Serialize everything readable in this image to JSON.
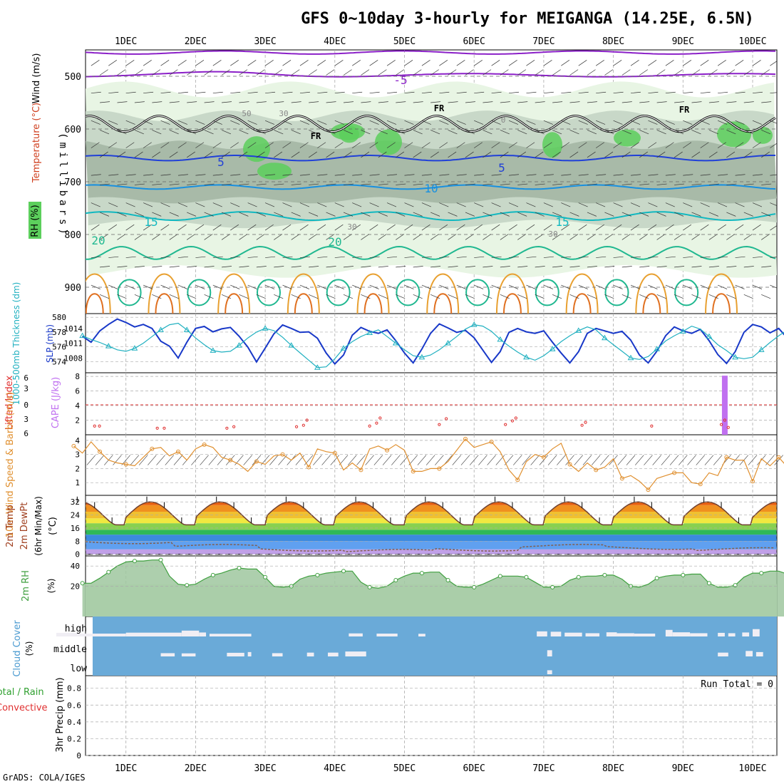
{
  "page": {
    "title": "GFS 0~10day 3-hourly for MEIGANGA (14.25E, 6.5N)",
    "footer": "GrADS: COLA/IGES",
    "run_total": "Run Total = 0"
  },
  "colors": {
    "rh_fill_light": "#e8f5e4",
    "rh_fill_mid": "#c8d8c8",
    "rh_fill_dark": "#a8baa8",
    "rh_fill_green": "#5ccf5c",
    "temp_purple": "#8b20c8",
    "temp_blue": "#2040d8",
    "temp_lightblue": "#1890e0",
    "temp_cyan": "#10b8c0",
    "temp_teal": "#20b890",
    "temp_orange": "#e8a030",
    "temp_darkorange": "#e07020",
    "freezing": "#000000",
    "thickness": "#20b0c0",
    "slp": "#1838c8",
    "cape": "#c070f0",
    "lifted": "#e03030",
    "wind10": "#e09030",
    "rh2m": "#40a040",
    "cloud_blue": "#6aaad8",
    "cloud_white": "#f0eef4",
    "grid": "#aaaaaa"
  },
  "chart_data": [
    {
      "id": "upper",
      "type": "heatmap",
      "x": [
        "1DEC",
        "2DEC",
        "3DEC",
        "4DEC",
        "5DEC",
        "6DEC",
        "7DEC",
        "8DEC",
        "9DEC",
        "10DEC"
      ],
      "ylabel": "(millibars)",
      "side_labels": {
        "wind": "Wind (m/s)",
        "temp": "Temperature (°C)",
        "rh": "RH (%)"
      },
      "yticks": [
        500,
        600,
        700,
        800,
        900
      ],
      "ylim": [
        450,
        950
      ],
      "contour_labels": [
        "-5",
        "FR",
        "FR",
        "FR",
        "5",
        "5",
        "10",
        "15",
        "15",
        "20",
        "20",
        "50",
        "30",
        "0",
        "30",
        "30"
      ]
    },
    {
      "id": "thickness_slp",
      "type": "line",
      "label_left": "1000-500mb Thickness (dm)",
      "label_right": "SLP (mb)",
      "yticks_left": [
        574,
        576,
        578,
        580
      ],
      "yticks_right": [
        1008,
        1011,
        1014
      ],
      "ylim_left": [
        572.5,
        580.5
      ],
      "thickness": [
        577.5,
        577.0,
        576.6,
        576.1,
        575.6,
        575.4,
        575.8,
        576.5,
        577.4,
        578.3,
        579.0,
        579.2,
        578.3,
        577.2,
        576.3,
        575.5,
        575.3,
        575.4,
        576.2,
        577.2,
        578.0,
        578.5,
        578.2,
        577.3,
        576.2,
        575.2,
        574.2,
        573.2,
        573.3,
        574.4,
        575.8,
        576.7,
        577.4,
        577.9,
        578.3,
        577.4,
        576.5,
        575.6,
        574.8,
        574.6,
        574.9,
        575.6,
        576.5,
        577.4,
        578.4,
        579.0,
        578.8,
        578.1,
        577.0,
        576.1,
        575.3,
        574.6,
        574.2,
        574.8,
        575.7,
        576.7,
        577.5,
        578.2,
        578.7,
        578.3,
        577.2,
        576.3,
        575.4,
        574.5,
        574.3,
        574.7,
        575.7,
        576.8,
        577.5,
        578.1,
        578.8,
        578.4,
        577.4,
        576.3,
        575.5,
        574.6,
        574.4,
        574.6,
        575.6,
        576.6,
        577.5,
        578.3,
        578.5,
        578.1,
        577.1,
        576.2,
        575.4,
        574.6,
        574.2,
        574.6,
        575.6,
        576.8,
        578.0,
        579.5,
        579.8,
        579.0,
        577.4,
        576.3,
        575.5,
        575.7,
        575.5
      ],
      "slp": [
        1012.4,
        1011.2,
        1013.5,
        1014.8,
        1015.9,
        1015.2,
        1014.3,
        1014.8,
        1014.0,
        1011.4,
        1010.4,
        1008.0,
        1011.2,
        1014.0,
        1014.4,
        1013.3,
        1013.9,
        1014.2,
        1012.4,
        1010.2,
        1007.2,
        1010.0,
        1012.9,
        1014.7,
        1014.0,
        1013.2,
        1013.3,
        1012.0,
        1009.0,
        1006.8,
        1008.6,
        1012.6,
        1014.2,
        1013.4,
        1013.0,
        1013.7,
        1011.5,
        1009.0,
        1007.0,
        1009.8,
        1013.0,
        1014.9,
        1014.1,
        1013.2,
        1013.6,
        1012.1,
        1009.6,
        1007.1,
        1009.3,
        1013.2,
        1014.0,
        1013.3,
        1013.0,
        1013.5,
        1011.2,
        1009.0,
        1007.0,
        1009.3,
        1013.0,
        1014.0,
        1013.5,
        1013.0,
        1013.4,
        1011.6,
        1008.6,
        1007.0,
        1009.4,
        1012.5,
        1014.3,
        1013.5,
        1013.0,
        1013.8,
        1011.5,
        1008.7,
        1006.9,
        1009.3,
        1013.2,
        1014.8,
        1014.3,
        1013.1,
        1014.0,
        1012.0,
        1009.8,
        1007.5,
        1009.8,
        1012.8,
        1014.2,
        1013.6,
        1013.2,
        1013.8,
        1012.3,
        1009.5,
        1007.4,
        1006.3,
        1009.0,
        1011.8,
        1012.5,
        1013.0,
        1014.0
      ]
    },
    {
      "id": "cape_li",
      "type": "bar",
      "label_left": "Lifted Index",
      "label_mid": "CAPE (J/kg)",
      "yticks_left": [
        "6",
        "3",
        "0",
        "3",
        "6"
      ],
      "yticks_right": [
        2,
        4,
        6,
        8
      ],
      "cape": [
        {
          "x": 9.6,
          "value": 8.1
        }
      ],
      "lifted_index": [
        [
          0.55,
          1.2
        ],
        [
          0.62,
          1.2
        ],
        [
          1.45,
          0.9
        ],
        [
          1.55,
          0.9
        ],
        [
          2.45,
          0.9
        ],
        [
          2.55,
          1.1
        ],
        [
          3.45,
          1.1
        ],
        [
          3.55,
          1.3
        ],
        [
          3.6,
          2.0
        ],
        [
          4.5,
          1.2
        ],
        [
          4.6,
          1.6
        ],
        [
          4.65,
          2.3
        ],
        [
          5.5,
          1.4
        ],
        [
          5.6,
          2.2
        ],
        [
          6.45,
          1.4
        ],
        [
          6.55,
          1.9
        ],
        [
          6.6,
          2.3
        ],
        [
          7.55,
          1.3
        ],
        [
          7.6,
          1.7
        ],
        [
          8.55,
          1.2
        ],
        [
          9.55,
          1.4
        ],
        [
          9.6,
          2.0
        ],
        [
          9.65,
          1.0
        ]
      ]
    },
    {
      "id": "wind10m",
      "type": "line",
      "label": "10m Wind Speed & Barbs (m/s)",
      "yticks": [
        1,
        2,
        3,
        4
      ],
      "ylim": [
        0.1,
        4.4
      ],
      "values": [
        3.6,
        3.1,
        3.9,
        3.2,
        2.6,
        2.4,
        2.3,
        2.2,
        2.8,
        3.4,
        3.5,
        2.9,
        3.2,
        2.6,
        3.4,
        3.7,
        3.5,
        2.8,
        2.6,
        2.3,
        1.8,
        2.5,
        2.3,
        2.9,
        3.0,
        2.6,
        3.1,
        2.1,
        3.4,
        3.2,
        3.1,
        1.9,
        2.4,
        1.9,
        3.4,
        3.6,
        3.3,
        3.7,
        3.3,
        1.8,
        1.8,
        2.0,
        2.0,
        2.5,
        3.3,
        4.1,
        3.5,
        3.7,
        3.9,
        3.2,
        1.9,
        1.2,
        2.5,
        3.0,
        2.8,
        3.4,
        3.8,
        2.3,
        1.8,
        2.4,
        1.9,
        2.1,
        2.7,
        1.3,
        1.5,
        1.1,
        0.5,
        1.3,
        1.5,
        1.7,
        1.7,
        1.0,
        0.9,
        1.7,
        1.5,
        2.8,
        2.6,
        2.6,
        1.1,
        2.7,
        2.2,
        2.8,
        2.1,
        2.8,
        2.3,
        3.0,
        3.4,
        2.5,
        2.9,
        3.3,
        2.2,
        2.1,
        2.4,
        2.5,
        3.0,
        2.3,
        1.9,
        2.2,
        2.2,
        2.0,
        2.4,
        2.6,
        1.6,
        1.8,
        2.1
      ]
    },
    {
      "id": "temp2m",
      "type": "area",
      "label_a": "2m Temp",
      "label_b": "2m DewPt",
      "label_c": "(6hr Min/Max)",
      "unit": "(°C)",
      "yticks": [
        0,
        8,
        16,
        24,
        32
      ],
      "ylim": [
        -1,
        36
      ],
      "days": 10,
      "temp_min": 18,
      "temp_max": 32,
      "dewpoint": [
        7.5,
        5,
        3,
        2,
        3,
        5,
        4,
        3
      ]
    },
    {
      "id": "rh2m",
      "type": "area",
      "label": "2m RH",
      "unit": "(%)",
      "yticks": [
        20,
        40
      ],
      "ylim": [
        -10,
        50
      ],
      "values": [
        23,
        23,
        28,
        34,
        40,
        44,
        45,
        45,
        46,
        46,
        30,
        22,
        21,
        22,
        27,
        31,
        33,
        36,
        38,
        37,
        37,
        29,
        20,
        19,
        20,
        27,
        30,
        31,
        33,
        34,
        35,
        35,
        24,
        19,
        18,
        20,
        26,
        30,
        33,
        33,
        34,
        34,
        26,
        20,
        19,
        19,
        22,
        26,
        30,
        30,
        30,
        29,
        24,
        19,
        19,
        20,
        26,
        29,
        30,
        30,
        31,
        31,
        27,
        20,
        19,
        22,
        28,
        30,
        31,
        31,
        32,
        32,
        23,
        19,
        19,
        21,
        29,
        33,
        33,
        35,
        35,
        32,
        22,
        18,
        18,
        21,
        28,
        31,
        34,
        36,
        34,
        28,
        20,
        18,
        18,
        21,
        24,
        27,
        28,
        28,
        27,
        30,
        31
      ]
    },
    {
      "id": "cloud",
      "type": "heatmap",
      "label": "Cloud Cover",
      "unit": "(%)",
      "levels": [
        "high",
        "middle",
        "low"
      ],
      "high": [
        [
          0.0,
          0.3,
          8
        ],
        [
          0.3,
          1.0,
          4
        ],
        [
          1.0,
          1.8,
          9
        ],
        [
          1.8,
          2.05,
          20
        ],
        [
          2.05,
          2.15,
          10
        ],
        [
          2.2,
          2.8,
          3
        ],
        [
          4.2,
          4.4,
          5
        ],
        [
          4.6,
          4.9,
          4
        ],
        [
          5.2,
          5.3,
          3
        ],
        [
          6.9,
          7.05,
          16
        ],
        [
          7.1,
          7.25,
          14
        ],
        [
          7.3,
          7.55,
          9
        ],
        [
          7.6,
          7.8,
          6
        ],
        [
          7.9,
          8.05,
          11
        ],
        [
          8.05,
          8.3,
          6
        ],
        [
          8.3,
          8.6,
          4
        ],
        [
          8.75,
          8.85,
          24
        ],
        [
          8.85,
          9.1,
          11
        ],
        [
          9.1,
          9.35,
          6
        ],
        [
          9.5,
          9.6,
          8
        ],
        [
          9.65,
          9.75,
          6
        ],
        [
          9.85,
          9.95,
          10
        ],
        [
          10.0,
          10.1,
          28
        ]
      ],
      "mid": [
        [
          1.5,
          1.7,
          6
        ],
        [
          1.8,
          2.0,
          5
        ],
        [
          2.45,
          2.7,
          8
        ],
        [
          2.75,
          2.8,
          12
        ],
        [
          3.1,
          3.25,
          6
        ],
        [
          3.6,
          3.7,
          9
        ],
        [
          3.9,
          4.05,
          9
        ],
        [
          4.15,
          4.45,
          15
        ],
        [
          7.05,
          7.12,
          22
        ],
        [
          9.5,
          9.65,
          9
        ],
        [
          9.9,
          10.0,
          18
        ],
        [
          10.05,
          10.15,
          12
        ]
      ],
      "low": [
        [
          7.05,
          7.12,
          10
        ]
      ]
    },
    {
      "id": "precip",
      "type": "bar",
      "label": "3hr Precip (mm)",
      "label_total": "Total / Rain",
      "label_conv": "Convective",
      "yticks": [
        "0",
        "0.2",
        "0.4",
        "0.6",
        "0.8"
      ],
      "ylim": [
        0,
        0.95
      ],
      "values": []
    }
  ]
}
